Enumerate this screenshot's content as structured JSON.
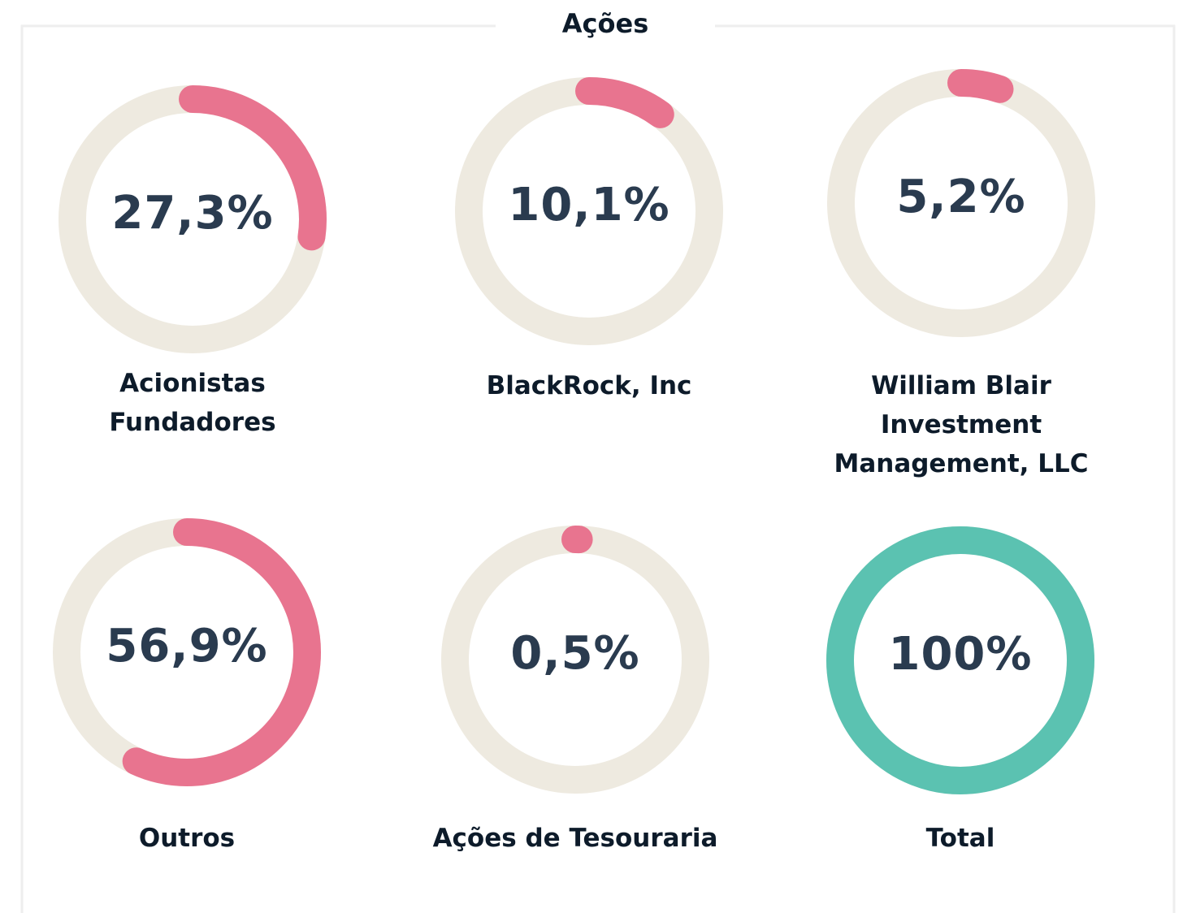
{
  "chart_data": {
    "type": "donut",
    "title": "Ações",
    "categories": [
      "Acionistas Fundadores",
      "BlackRock, Inc",
      "William Blair Investment Management, LLC",
      "Outros",
      "Ações de Tesouraria",
      "Total"
    ],
    "values": [
      27.3,
      10.1,
      5.2,
      56.9,
      0.5,
      100
    ],
    "value_labels": [
      "27,3%",
      "10,1%",
      "5,2%",
      "56,9%",
      "0,5%",
      "100%"
    ],
    "colors": [
      "#e8748f",
      "#e8748f",
      "#e8748f",
      "#e8748f",
      "#e8748f",
      "#5bc2b1"
    ],
    "track_color": "#eeeae0",
    "ylim": [
      0,
      100
    ]
  }
}
